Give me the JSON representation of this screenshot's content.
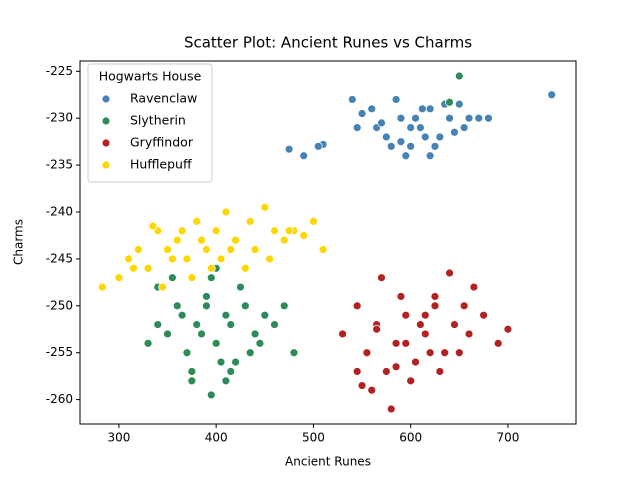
{
  "chart_data": {
    "type": "scatter",
    "title": "Scatter Plot: Ancient Runes vs Charms",
    "x_label": "Ancient Runes",
    "y_label": "Charms",
    "legend_title": "Hogwarts House",
    "legend_position": "upper left",
    "xlim": [
      260,
      770
    ],
    "ylim": [
      -262.6,
      -223.9
    ],
    "xticks": [
      300,
      400,
      500,
      600,
      700
    ],
    "yticks": [
      -260,
      -255,
      -250,
      -245,
      -240,
      -235,
      -230,
      -225
    ],
    "series": [
      {
        "name": "Ravenclaw",
        "color": "#4682b4",
        "x": [
          545,
          560,
          575,
          590,
          600,
          610,
          620,
          630,
          640,
          655,
          670,
          585,
          595,
          605,
          615,
          625,
          565,
          580,
          550,
          635,
          645,
          660,
          600,
          612,
          590,
          570,
          620,
          680,
          745,
          475,
          490,
          510,
          505,
          540,
          650
        ],
        "y": [
          -231,
          -229,
          -232,
          -230,
          -233,
          -231,
          -229,
          -232,
          -230,
          -231,
          -230,
          -228,
          -234,
          -230,
          -232,
          -233,
          -231,
          -233,
          -229.5,
          -228.5,
          -231.5,
          -230,
          -231,
          -229,
          -232.5,
          -230.5,
          -234,
          -230,
          -227.5,
          -233.3,
          -234,
          -232.8,
          -233,
          -228,
          -228.5
        ]
      },
      {
        "name": "Slytherin",
        "color": "#2e8b57",
        "x": [
          340,
          350,
          360,
          370,
          380,
          390,
          400,
          410,
          420,
          430,
          440,
          450,
          460,
          470,
          355,
          365,
          375,
          385,
          395,
          405,
          415,
          425,
          435,
          445,
          375,
          390,
          410,
          400,
          340,
          480,
          415,
          395,
          650,
          640,
          330
        ],
        "y": [
          -248,
          -253,
          -250,
          -255,
          -252,
          -249,
          -254,
          -251,
          -256,
          -250,
          -253,
          -251,
          -252,
          -250,
          -247,
          -251,
          -258,
          -253,
          -259.5,
          -256,
          -252,
          -248,
          -255,
          -254,
          -257,
          -250,
          -258,
          -246,
          -252,
          -255,
          -257,
          -247,
          -225.5,
          -228.3,
          -254
        ]
      },
      {
        "name": "Gryffindor",
        "color": "#b22222",
        "x": [
          530,
          545,
          555,
          565,
          575,
          585,
          595,
          605,
          615,
          625,
          635,
          645,
          655,
          665,
          675,
          690,
          700,
          560,
          580,
          600,
          620,
          640,
          570,
          590,
          610,
          630,
          550,
          660,
          595,
          615,
          585,
          625,
          545,
          565,
          650
        ],
        "y": [
          -253,
          -250,
          -255,
          -252,
          -257,
          -254,
          -251,
          -256,
          -253,
          -249,
          -255,
          -252,
          -250,
          -248,
          -251,
          -254,
          -252.5,
          -259,
          -261,
          -258,
          -255,
          -246.5,
          -247,
          -249,
          -252,
          -257,
          -258.5,
          -253,
          -254,
          -251,
          -256.5,
          -250,
          -257,
          -252.5,
          -255
        ]
      },
      {
        "name": "Hufflepuff",
        "color": "#ffd700",
        "x": [
          283,
          300,
          310,
          320,
          330,
          340,
          350,
          360,
          370,
          380,
          390,
          400,
          410,
          420,
          430,
          440,
          450,
          460,
          470,
          480,
          490,
          500,
          510,
          315,
          335,
          355,
          375,
          395,
          415,
          435,
          455,
          475,
          345,
          365,
          385,
          405
        ],
        "y": [
          -248,
          -247,
          -245,
          -244,
          -246,
          -242,
          -244,
          -243,
          -245,
          -241,
          -244,
          -242,
          -240,
          -243,
          -246,
          -244,
          -239.5,
          -242,
          -243,
          -242,
          -242.5,
          -241,
          -244,
          -246,
          -241.5,
          -245,
          -247,
          -246,
          -244,
          -241,
          -245,
          -242,
          -248,
          -242,
          -243,
          -245
        ]
      }
    ]
  }
}
